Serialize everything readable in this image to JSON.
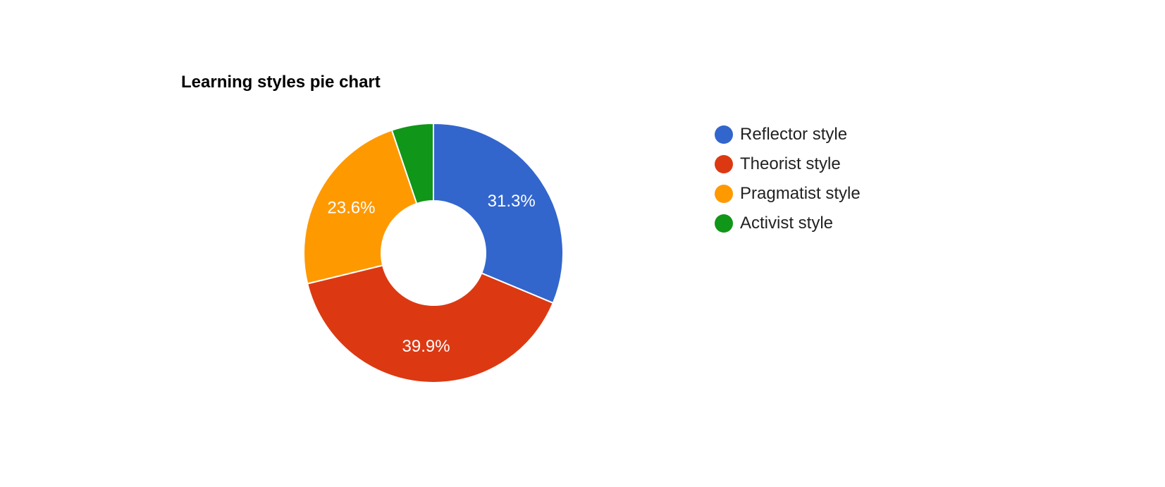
{
  "chart_data": {
    "type": "pie",
    "title": "Learning styles pie chart",
    "donut": true,
    "legend_position": "right",
    "slices": [
      {
        "label": "Reflector style",
        "percent": 31.3,
        "display": "31.3%",
        "color": "#3366cc"
      },
      {
        "label": "Theorist style",
        "percent": 39.9,
        "display": "39.9%",
        "color": "#dc3912"
      },
      {
        "label": "Pragmatist style",
        "percent": 23.6,
        "display": "23.6%",
        "color": "#ff9900"
      },
      {
        "label": "Activist style",
        "percent": 5.2,
        "display": "",
        "color": "#109618"
      }
    ]
  }
}
